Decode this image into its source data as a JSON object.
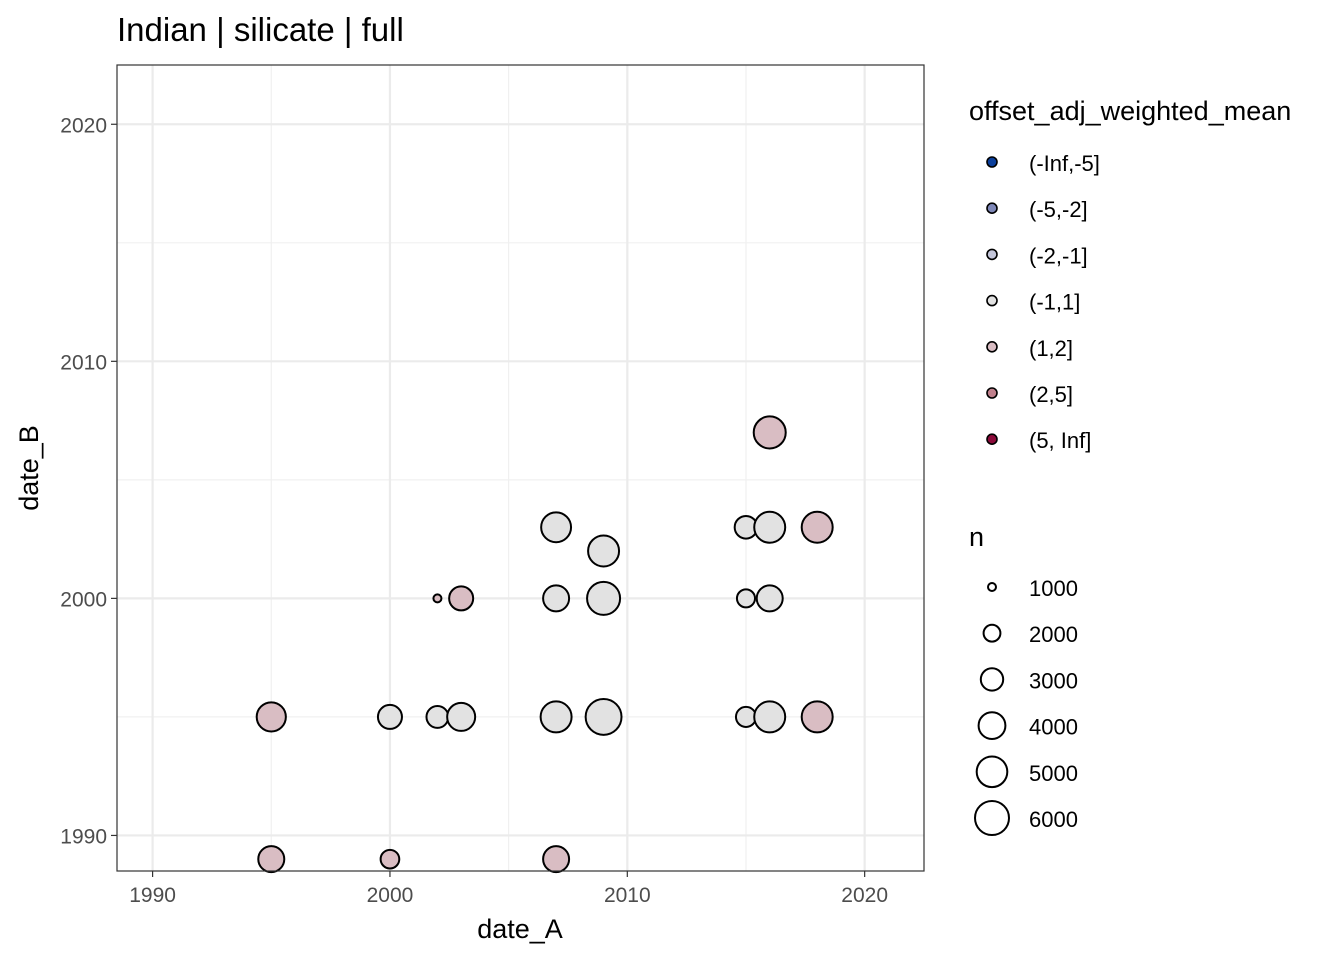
{
  "chart_data": {
    "type": "scatter",
    "title": "Indian | silicate | full",
    "xlabel": "date_A",
    "ylabel": "date_B",
    "xlim": [
      1988.5,
      2022.5
    ],
    "ylim": [
      1988.5,
      2022.5
    ],
    "xticks": [
      1990,
      2000,
      2010,
      2020
    ],
    "yticks": [
      1990,
      2000,
      2010,
      2020
    ],
    "grid": true,
    "legend_position": "right",
    "color_legend": {
      "title": "offset_adj_weighted_mean",
      "entries": [
        {
          "label": "(-Inf,-5]",
          "color": "#0B3F9B"
        },
        {
          "label": "(-5,-2]",
          "color": "#7F88B8"
        },
        {
          "label": "(-2,-1]",
          "color": "#C4C6DA"
        },
        {
          "label": "(-1,1]",
          "color": "#E2E2E2"
        },
        {
          "label": "(1,2]",
          "color": "#D9BDC3"
        },
        {
          "label": "(2,5]",
          "color": "#C0808C"
        },
        {
          "label": "(5, Inf]",
          "color": "#8B0A3A"
        }
      ]
    },
    "size_legend": {
      "title": "n",
      "entries": [
        1000,
        2000,
        3000,
        4000,
        5000,
        6000
      ]
    },
    "points": [
      {
        "x": 1995,
        "y": 1995,
        "n": 4600,
        "category": "(1,2]"
      },
      {
        "x": 1995,
        "y": 1989,
        "n": 3800,
        "category": "(1,2]"
      },
      {
        "x": 2000,
        "y": 1995,
        "n": 3350,
        "category": "(-1,1]"
      },
      {
        "x": 2000,
        "y": 1989,
        "n": 2300,
        "category": "(1,2]"
      },
      {
        "x": 2002,
        "y": 2000,
        "n": 1000,
        "category": "(1,2]"
      },
      {
        "x": 2002,
        "y": 1995,
        "n": 2900,
        "category": "(-1,1]"
      },
      {
        "x": 2003,
        "y": 2000,
        "n": 3350,
        "category": "(1,2]"
      },
      {
        "x": 2003,
        "y": 1995,
        "n": 4300,
        "category": "(-1,1]"
      },
      {
        "x": 2007,
        "y": 2003,
        "n": 4800,
        "category": "(-1,1]"
      },
      {
        "x": 2007,
        "y": 2000,
        "n": 3800,
        "category": "(-1,1]"
      },
      {
        "x": 2007,
        "y": 1995,
        "n": 5100,
        "category": "(-1,1]"
      },
      {
        "x": 2007,
        "y": 1989,
        "n": 3800,
        "category": "(1,2]"
      },
      {
        "x": 2009,
        "y": 2002,
        "n": 5100,
        "category": "(-1,1]"
      },
      {
        "x": 2009,
        "y": 2000,
        "n": 5700,
        "category": "(-1,1]"
      },
      {
        "x": 2009,
        "y": 1995,
        "n": 6600,
        "category": "(-1,1]"
      },
      {
        "x": 2015,
        "y": 2003,
        "n": 3050,
        "category": "(-1,1]"
      },
      {
        "x": 2015,
        "y": 2000,
        "n": 2200,
        "category": "(-1,1]"
      },
      {
        "x": 2015,
        "y": 1995,
        "n": 2550,
        "category": "(-1,1]"
      },
      {
        "x": 2016,
        "y": 2007,
        "n": 5400,
        "category": "(1,2]"
      },
      {
        "x": 2016,
        "y": 2003,
        "n": 5100,
        "category": "(-1,1]"
      },
      {
        "x": 2016,
        "y": 2000,
        "n": 3800,
        "category": "(-1,1]"
      },
      {
        "x": 2016,
        "y": 1995,
        "n": 5100,
        "category": "(-1,1]"
      },
      {
        "x": 2018,
        "y": 2003,
        "n": 5100,
        "category": "(1,2]"
      },
      {
        "x": 2018,
        "y": 1995,
        "n": 5100,
        "category": "(1,2]"
      }
    ]
  }
}
